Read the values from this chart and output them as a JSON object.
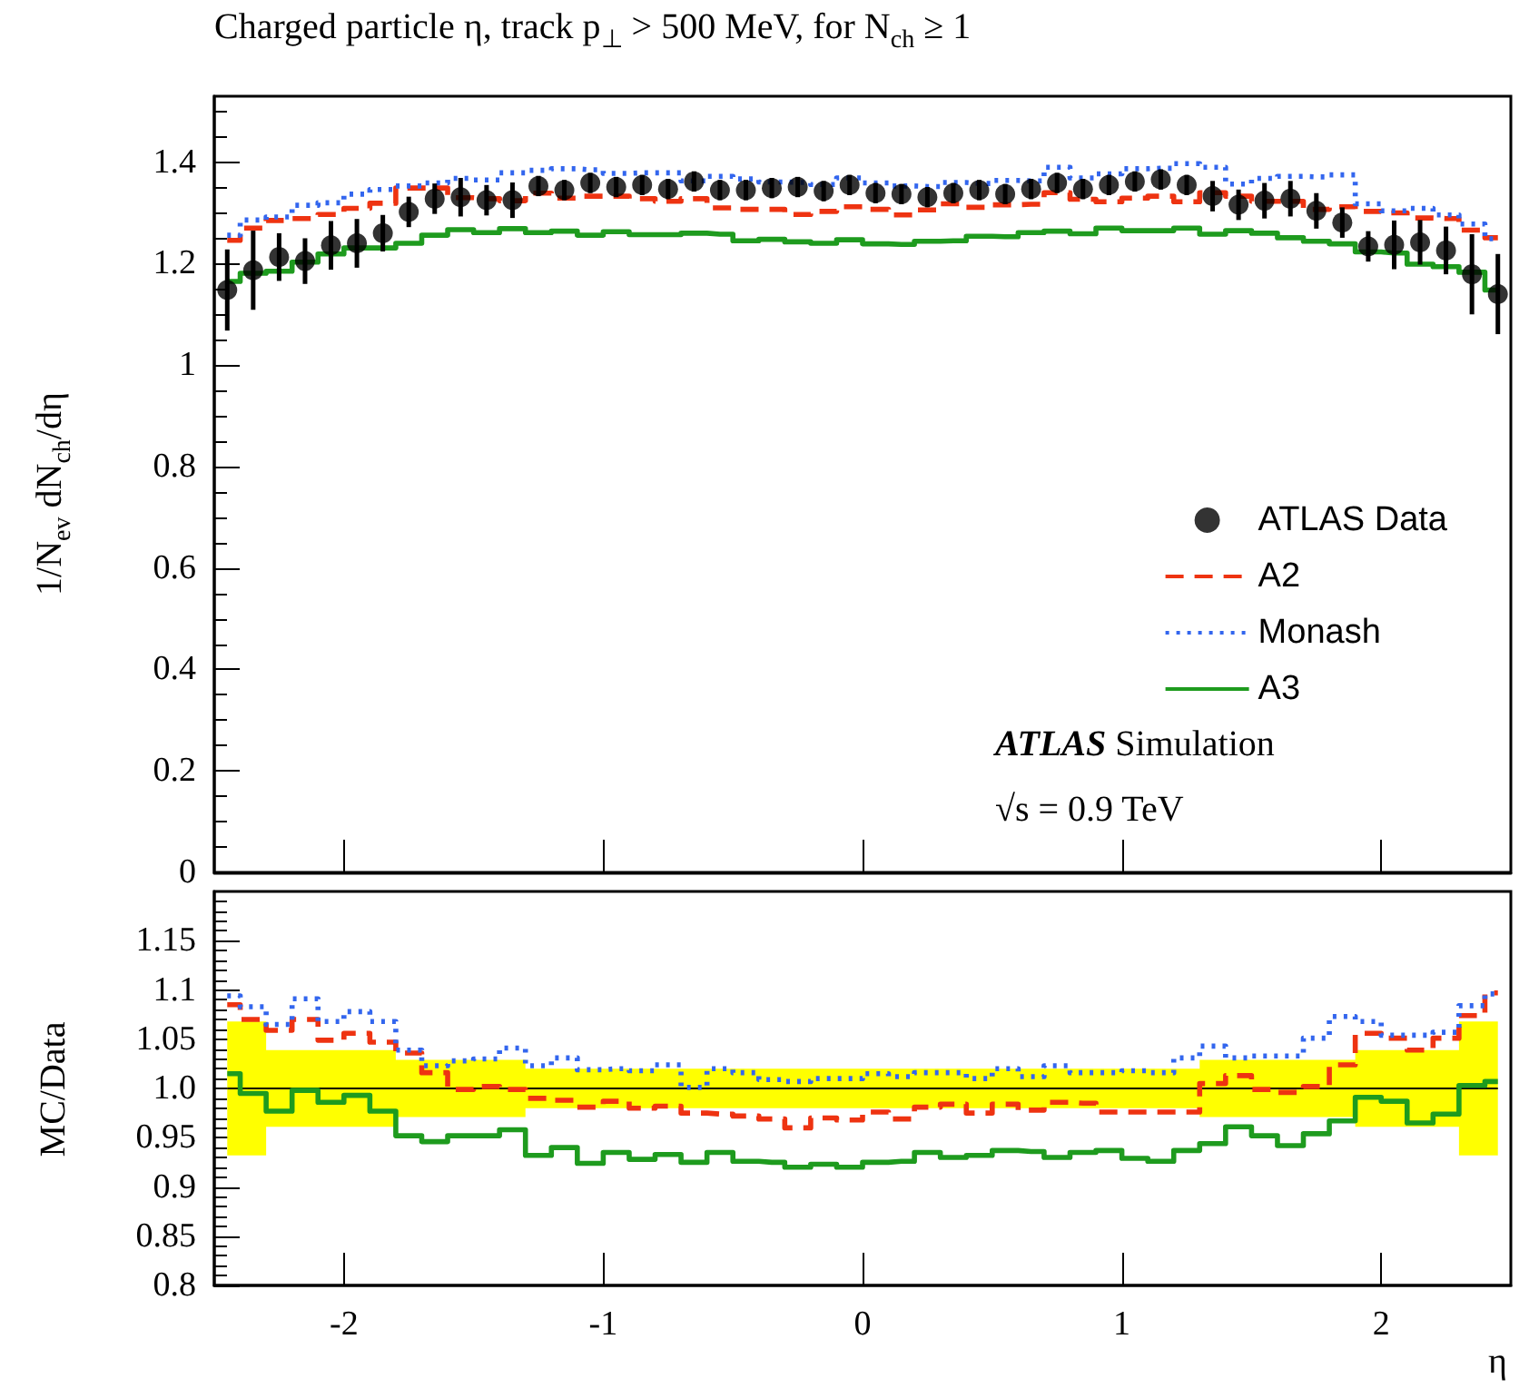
{
  "chart_data": [
    {
      "type": "step",
      "title": "Charged particle η, track p$_{⊥}$ > 500 MeV, for N$_{ch}$ ≥ 1",
      "ylabel": "1/N$_{ev}$ dN$_{ch}$/dη",
      "x": [
        -2.45,
        -2.35,
        -2.25,
        -2.15,
        -2.05,
        -1.95,
        -1.85,
        -1.75,
        -1.65,
        -1.55,
        -1.45,
        -1.35,
        -1.25,
        -1.15,
        -1.05,
        -0.95,
        -0.85,
        -0.75,
        -0.65,
        -0.55,
        -0.45,
        -0.35,
        -0.25,
        -0.15,
        -0.05,
        0.05,
        0.15,
        0.25,
        0.35,
        0.45,
        0.55,
        0.65,
        0.75,
        0.85,
        0.95,
        1.05,
        1.15,
        1.25,
        1.35,
        1.45,
        1.55,
        1.65,
        1.75,
        1.85,
        1.95,
        2.05,
        2.15,
        2.25,
        2.35,
        2.45
      ],
      "series": [
        {
          "name": "ATLAS Data",
          "type": "scatter",
          "color": "#000000",
          "marker": "circle",
          "values": [
            1.148,
            1.187,
            1.213,
            1.205,
            1.236,
            1.24,
            1.26,
            1.302,
            1.328,
            1.331,
            1.325,
            1.325,
            1.353,
            1.345,
            1.359,
            1.351,
            1.355,
            1.347,
            1.362,
            1.345,
            1.345,
            1.349,
            1.351,
            1.343,
            1.355,
            1.339,
            1.337,
            1.331,
            1.339,
            1.345,
            1.337,
            1.347,
            1.359,
            1.347,
            1.355,
            1.362,
            1.366,
            1.355,
            1.333,
            1.316,
            1.324,
            1.328,
            1.304,
            1.281,
            1.234,
            1.237,
            1.242,
            1.226,
            1.179,
            1.14
          ],
          "errors": [
            0.08,
            0.078,
            0.047,
            0.045,
            0.048,
            0.048,
            0.036,
            0.03,
            0.03,
            0.038,
            0.03,
            0.035,
            0.02,
            0.02,
            0.02,
            0.02,
            0.02,
            0.02,
            0.02,
            0.02,
            0.02,
            0.02,
            0.02,
            0.02,
            0.02,
            0.02,
            0.02,
            0.02,
            0.02,
            0.02,
            0.02,
            0.02,
            0.02,
            0.02,
            0.02,
            0.02,
            0.02,
            0.02,
            0.03,
            0.03,
            0.035,
            0.035,
            0.035,
            0.03,
            0.03,
            0.048,
            0.044,
            0.047,
            0.079,
            0.079
          ]
        },
        {
          "name": "A2",
          "color": "#ee3311",
          "line_style": "dashed",
          "values": [
            1.246,
            1.27,
            1.285,
            1.289,
            1.297,
            1.309,
            1.319,
            1.349,
            1.349,
            1.33,
            1.328,
            1.324,
            1.339,
            1.329,
            1.333,
            1.333,
            1.328,
            1.323,
            1.328,
            1.31,
            1.307,
            1.307,
            1.297,
            1.303,
            1.312,
            1.307,
            1.296,
            1.306,
            1.318,
            1.311,
            1.316,
            1.317,
            1.34,
            1.327,
            1.322,
            1.329,
            1.333,
            1.322,
            1.34,
            1.333,
            1.323,
            1.323,
            1.307,
            1.312,
            1.303,
            1.3,
            1.29,
            1.289,
            1.266,
            1.251
          ]
        },
        {
          "name": "Monash",
          "color": "#3366ee",
          "line_style": "dotted",
          "values": [
            1.256,
            1.286,
            1.292,
            1.315,
            1.32,
            1.337,
            1.346,
            1.353,
            1.359,
            1.368,
            1.365,
            1.379,
            1.384,
            1.387,
            1.385,
            1.378,
            1.379,
            1.379,
            1.363,
            1.372,
            1.367,
            1.361,
            1.36,
            1.356,
            1.369,
            1.359,
            1.353,
            1.352,
            1.36,
            1.358,
            1.364,
            1.363,
            1.39,
            1.369,
            1.377,
            1.387,
            1.388,
            1.397,
            1.39,
            1.357,
            1.368,
            1.372,
            1.371,
            1.375,
            1.318,
            1.304,
            1.309,
            1.296,
            1.278,
            1.249
          ]
        },
        {
          "name": "A3",
          "color": "#1e9b1e",
          "line_style": "solid",
          "values": [
            1.165,
            1.181,
            1.185,
            1.203,
            1.219,
            1.231,
            1.231,
            1.24,
            1.256,
            1.267,
            1.261,
            1.269,
            1.261,
            1.264,
            1.256,
            1.263,
            1.257,
            1.257,
            1.26,
            1.258,
            1.245,
            1.248,
            1.243,
            1.24,
            1.247,
            1.239,
            1.238,
            1.244,
            1.245,
            1.254,
            1.253,
            1.261,
            1.264,
            1.259,
            1.27,
            1.265,
            1.265,
            1.27,
            1.258,
            1.265,
            1.26,
            1.251,
            1.244,
            1.239,
            1.223,
            1.221,
            1.199,
            1.194,
            1.183,
            1.148
          ]
        }
      ],
      "xlim": [
        -2.5,
        2.5
      ],
      "xticks": [
        -2,
        -1,
        0,
        1,
        2
      ],
      "ylim": [
        0,
        1.53
      ],
      "yticks": [
        0,
        0.2,
        0.4,
        0.6,
        0.8,
        1,
        1.2,
        1.4
      ],
      "tick_labels": "y",
      "legend": "right",
      "annotations": [
        "ATLAS Simulation",
        "√s = 0.9 TeV"
      ]
    },
    {
      "type": "step",
      "xlabel": "η",
      "ylabel": "MC/Data",
      "x": [
        -2.45,
        -2.35,
        -2.25,
        -2.15,
        -2.05,
        -1.95,
        -1.85,
        -1.75,
        -1.65,
        -1.55,
        -1.45,
        -1.35,
        -1.25,
        -1.15,
        -1.05,
        -0.95,
        -0.85,
        -0.75,
        -0.65,
        -0.55,
        -0.45,
        -0.35,
        -0.25,
        -0.15,
        -0.05,
        0.05,
        0.15,
        0.25,
        0.35,
        0.45,
        0.55,
        0.65,
        0.75,
        0.85,
        0.95,
        1.05,
        1.15,
        1.25,
        1.35,
        1.45,
        1.55,
        1.65,
        1.75,
        1.85,
        1.95,
        2.05,
        2.15,
        2.25,
        2.35,
        2.45
      ],
      "series": [
        {
          "color": "#000000",
          "line_style": "solid",
          "values": [
            1,
            1,
            1,
            1,
            1,
            1,
            1,
            1,
            1,
            1,
            1,
            1,
            1,
            1,
            1,
            1,
            1,
            1,
            1,
            1,
            1,
            1,
            1,
            1,
            1,
            1,
            1,
            1,
            1,
            1,
            1,
            1,
            1,
            1,
            1,
            1,
            1,
            1,
            1,
            1,
            1,
            1,
            1,
            1,
            1,
            1,
            1,
            1,
            1,
            1
          ],
          "lower": [
            0.932,
            0.932,
            0.961,
            0.961,
            0.961,
            0.961,
            0.961,
            0.971,
            0.971,
            0.971,
            0.971,
            0.971,
            0.98,
            0.98,
            0.98,
            0.98,
            0.98,
            0.98,
            0.98,
            0.98,
            0.98,
            0.98,
            0.98,
            0.98,
            0.98,
            0.98,
            0.98,
            0.98,
            0.98,
            0.98,
            0.98,
            0.98,
            0.98,
            0.98,
            0.98,
            0.98,
            0.98,
            0.98,
            0.971,
            0.971,
            0.971,
            0.971,
            0.971,
            0.971,
            0.961,
            0.961,
            0.961,
            0.961,
            0.932,
            0.932
          ],
          "upper": [
            1.068,
            1.068,
            1.039,
            1.039,
            1.039,
            1.039,
            1.039,
            1.029,
            1.029,
            1.029,
            1.029,
            1.029,
            1.02,
            1.02,
            1.02,
            1.02,
            1.02,
            1.02,
            1.02,
            1.02,
            1.02,
            1.02,
            1.02,
            1.02,
            1.02,
            1.02,
            1.02,
            1.02,
            1.02,
            1.02,
            1.02,
            1.02,
            1.02,
            1.02,
            1.02,
            1.02,
            1.02,
            1.02,
            1.029,
            1.029,
            1.029,
            1.029,
            1.029,
            1.029,
            1.039,
            1.039,
            1.039,
            1.039,
            1.068,
            1.068
          ]
        },
        {
          "color": "#ee3311",
          "line_style": "dashed",
          "values": [
            1.085,
            1.07,
            1.059,
            1.07,
            1.049,
            1.056,
            1.047,
            1.036,
            1.016,
            0.999,
            1.002,
            0.999,
            0.99,
            0.988,
            0.981,
            0.987,
            0.98,
            0.982,
            0.975,
            0.974,
            0.972,
            0.969,
            0.96,
            0.97,
            0.968,
            0.976,
            0.969,
            0.981,
            0.984,
            0.975,
            0.984,
            0.978,
            0.986,
            0.985,
            0.976,
            0.976,
            0.976,
            0.976,
            1.005,
            1.013,
            0.999,
            0.996,
            1.002,
            1.024,
            1.056,
            1.051,
            1.039,
            1.051,
            1.074,
            1.097
          ]
        },
        {
          "color": "#3366ee",
          "line_style": "dotted",
          "values": [
            1.094,
            1.083,
            1.065,
            1.091,
            1.068,
            1.078,
            1.068,
            1.039,
            1.023,
            1.028,
            1.03,
            1.041,
            1.023,
            1.031,
            1.019,
            1.02,
            1.018,
            1.024,
            1.001,
            1.02,
            1.016,
            1.009,
            1.007,
            1.01,
            1.01,
            1.015,
            1.012,
            1.016,
            1.016,
            1.01,
            1.02,
            1.012,
            1.023,
            1.016,
            1.016,
            1.018,
            1.016,
            1.031,
            1.043,
            1.031,
            1.033,
            1.033,
            1.051,
            1.073,
            1.068,
            1.054,
            1.054,
            1.057,
            1.084,
            1.096
          ]
        },
        {
          "color": "#1e9b1e",
          "line_style": "solid",
          "values": [
            1.015,
            0.995,
            0.977,
            0.998,
            0.986,
            0.993,
            0.977,
            0.952,
            0.946,
            0.952,
            0.952,
            0.958,
            0.932,
            0.94,
            0.924,
            0.935,
            0.928,
            0.933,
            0.925,
            0.935,
            0.926,
            0.925,
            0.92,
            0.923,
            0.92,
            0.925,
            0.926,
            0.935,
            0.93,
            0.932,
            0.937,
            0.936,
            0.93,
            0.935,
            0.937,
            0.929,
            0.926,
            0.937,
            0.944,
            0.961,
            0.952,
            0.942,
            0.954,
            0.967,
            0.991,
            0.987,
            0.965,
            0.974,
            1.003,
            1.007
          ]
        }
      ],
      "xlim": [
        -2.5,
        2.5
      ],
      "xticks": [
        -2,
        -1,
        0,
        1,
        2
      ],
      "ylim": [
        0.8,
        1.2
      ],
      "yticks": [
        0.8,
        0.85,
        0.9,
        0.95,
        {
          "value": 1,
          "label": "1.0"
        },
        1.05,
        1.1,
        1.15
      ]
    }
  ]
}
